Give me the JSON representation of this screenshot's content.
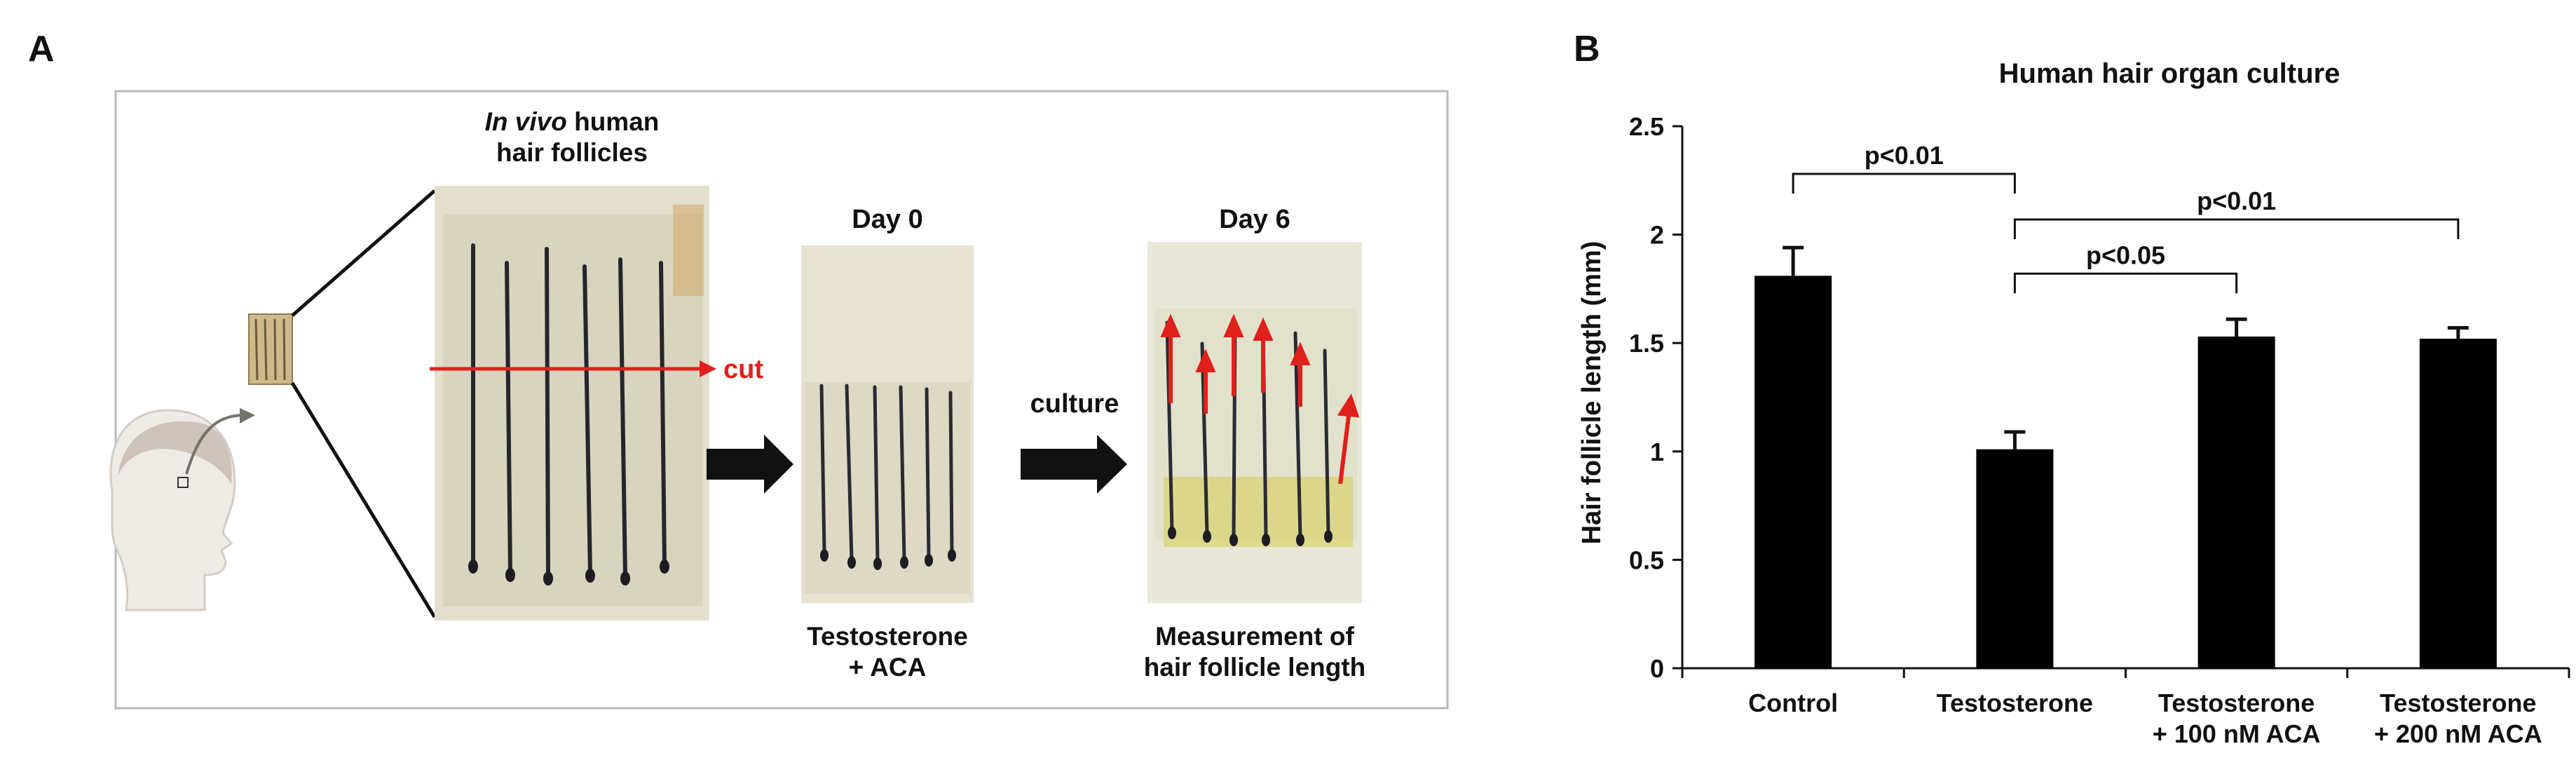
{
  "panel_a": {
    "letter": "A",
    "invivo_title": [
      "In vivo",
      " human",
      "hair follicles"
    ],
    "cut_label": "cut",
    "day0_label": "Day 0",
    "day6_label": "Day 6",
    "culture_label": "culture",
    "treatment_label": [
      "Testosterone",
      "+ ACA"
    ],
    "measurement_label": [
      "Measurement of",
      "hair follicle length"
    ],
    "colors": {
      "cut_arrow": "#e0201b",
      "arrow": "#111111",
      "gel": "#dcdcc4"
    }
  },
  "panel_b": {
    "letter": "B"
  },
  "chart_data": {
    "type": "bar",
    "title": "Human hair organ culture",
    "ylabel": "Hair follicle length (mm)",
    "xlabel": "",
    "ylim": [
      0,
      2.5
    ],
    "yticks": [
      "0",
      "0.5",
      "1",
      "1.5",
      "2",
      "2.5"
    ],
    "categories": [
      [
        "Control"
      ],
      [
        "Testosterone"
      ],
      [
        "Testosterone",
        "+ 100 nM ACA"
      ],
      [
        "Testosterone",
        "+ 200 nM ACA"
      ]
    ],
    "values": [
      1.81,
      1.01,
      1.53,
      1.52
    ],
    "errors": [
      0.13,
      0.08,
      0.08,
      0.05
    ],
    "bar_color": "#000000",
    "significance": [
      {
        "from": 0,
        "to": 1,
        "y": 2.28,
        "label": "p<0.01"
      },
      {
        "from": 1,
        "to": 3,
        "y": 2.07,
        "label": "p<0.01"
      },
      {
        "from": 1,
        "to": 2,
        "y": 1.82,
        "label": "p<0.05"
      }
    ]
  }
}
